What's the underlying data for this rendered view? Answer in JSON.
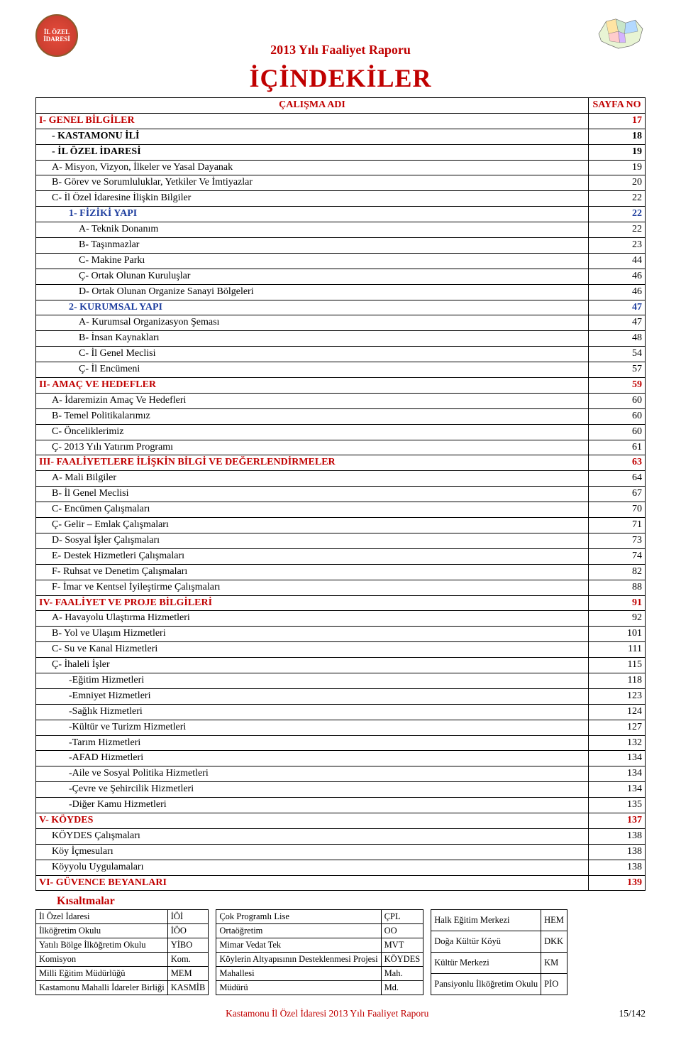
{
  "header": {
    "report_title": "2013 Yılı Faaliyet Raporu",
    "big_title": "İÇİNDEKİLER",
    "logo_left_text": "İL ÖZEL İDARESİ"
  },
  "toc_header": {
    "label_col": "ÇALIŞMA ADI",
    "page_col": "SAYFA NO"
  },
  "toc": [
    {
      "label": "I- GENEL BİLGİLER",
      "page": "17",
      "cls": "head1",
      "indent": 0
    },
    {
      "label": "- KASTAMONU İLİ",
      "page": "18",
      "cls": "head2",
      "indent": 1
    },
    {
      "label": "- İL ÖZEL İDARESİ",
      "page": "19",
      "cls": "head2",
      "indent": 1
    },
    {
      "label": "A- Misyon, Vizyon, İlkeler ve Yasal Dayanak",
      "page": "19",
      "cls": "",
      "indent": 1
    },
    {
      "label": "B- Görev ve Sorumluluklar, Yetkiler Ve İmtiyazlar",
      "page": "20",
      "cls": "",
      "indent": 1
    },
    {
      "label": "C- İl Özel İdaresine İlişkin Bilgiler",
      "page": "22",
      "cls": "",
      "indent": 1
    },
    {
      "label": "1- FİZİKİ YAPI",
      "page": "22",
      "cls": "blue",
      "indent": 2
    },
    {
      "label": "A- Teknik Donanım",
      "page": "22",
      "cls": "",
      "indent": 3
    },
    {
      "label": "B- Taşınmazlar",
      "page": "23",
      "cls": "",
      "indent": 3
    },
    {
      "label": "C- Makine Parkı",
      "page": "44",
      "cls": "",
      "indent": 3
    },
    {
      "label": "Ç- Ortak Olunan Kuruluşlar",
      "page": "46",
      "cls": "",
      "indent": 3
    },
    {
      "label": "D- Ortak Olunan Organize Sanayi Bölgeleri",
      "page": "46",
      "cls": "",
      "indent": 3
    },
    {
      "label": "2- KURUMSAL YAPI",
      "page": "47",
      "cls": "blue",
      "indent": 2
    },
    {
      "label": "A- Kurumsal Organizasyon Şeması",
      "page": "47",
      "cls": "",
      "indent": 3
    },
    {
      "label": "B- İnsan Kaynakları",
      "page": "48",
      "cls": "",
      "indent": 3
    },
    {
      "label": "C- İl Genel Meclisi",
      "page": "54",
      "cls": "",
      "indent": 3
    },
    {
      "label": "Ç- İl Encümeni",
      "page": "57",
      "cls": "",
      "indent": 3
    },
    {
      "label": "II- AMAÇ VE HEDEFLER",
      "page": "59",
      "cls": "head1",
      "indent": 0
    },
    {
      "label": "A- İdaremizin Amaç Ve Hedefleri",
      "page": "60",
      "cls": "",
      "indent": 1
    },
    {
      "label": "B- Temel Politikalarımız",
      "page": "60",
      "cls": "",
      "indent": 1
    },
    {
      "label": "C- Önceliklerimiz",
      "page": "60",
      "cls": "",
      "indent": 1
    },
    {
      "label": "Ç- 2013 Yılı Yatırım Programı",
      "page": "61",
      "cls": "",
      "indent": 1
    },
    {
      "label": "III- FAALİYETLERE İLİŞKİN BİLGİ VE DEĞERLENDİRMELER",
      "page": "63",
      "cls": "head1",
      "indent": 0
    },
    {
      "label": "A- Mali Bilgiler",
      "page": "64",
      "cls": "",
      "indent": 1
    },
    {
      "label": "B- İl Genel Meclisi",
      "page": "67",
      "cls": "",
      "indent": 1
    },
    {
      "label": "C- Encümen Çalışmaları",
      "page": "70",
      "cls": "",
      "indent": 1
    },
    {
      "label": "Ç- Gelir – Emlak Çalışmaları",
      "page": "71",
      "cls": "",
      "indent": 1
    },
    {
      "label": "D- Sosyal İşler Çalışmaları",
      "page": "73",
      "cls": "",
      "indent": 1
    },
    {
      "label": "E- Destek Hizmetleri Çalışmaları",
      "page": "74",
      "cls": "",
      "indent": 1
    },
    {
      "label": "F- Ruhsat ve Denetim Çalışmaları",
      "page": "82",
      "cls": "",
      "indent": 1
    },
    {
      "label": "F- İmar ve Kentsel İyileştirme Çalışmaları",
      "page": "88",
      "cls": "",
      "indent": 1
    },
    {
      "label": "IV- FAALİYET VE PROJE BİLGİLERİ",
      "page": "91",
      "cls": "head1",
      "indent": 0
    },
    {
      "label": "A- Havayolu Ulaştırma Hizmetleri",
      "page": "92",
      "cls": "",
      "indent": 1
    },
    {
      "label": "B- Yol ve Ulaşım Hizmetleri",
      "page": "101",
      "cls": "",
      "indent": 1
    },
    {
      "label": "C- Su ve Kanal Hizmetleri",
      "page": "111",
      "cls": "",
      "indent": 1
    },
    {
      "label": "Ç- İhaleli İşler",
      "page": "115",
      "cls": "",
      "indent": 1
    },
    {
      "label": "-Eğitim Hizmetleri",
      "page": "118",
      "cls": "",
      "indent": 2
    },
    {
      "label": "-Emniyet Hizmetleri",
      "page": "123",
      "cls": "",
      "indent": 2
    },
    {
      "label": "-Sağlık Hizmetleri",
      "page": "124",
      "cls": "",
      "indent": 2
    },
    {
      "label": "-Kültür ve Turizm Hizmetleri",
      "page": "127",
      "cls": "",
      "indent": 2
    },
    {
      "label": "-Tarım Hizmetleri",
      "page": "132",
      "cls": "",
      "indent": 2
    },
    {
      "label": "-AFAD Hizmetleri",
      "page": "134",
      "cls": "",
      "indent": 2
    },
    {
      "label": "-Aile ve Sosyal Politika Hizmetleri",
      "page": "134",
      "cls": "",
      "indent": 2
    },
    {
      "label": "-Çevre ve Şehircilik Hizmetleri",
      "page": "134",
      "cls": "",
      "indent": 2
    },
    {
      "label": "-Diğer Kamu Hizmetleri",
      "page": "135",
      "cls": "",
      "indent": 2
    },
    {
      "label": "V- KÖYDES",
      "page": "137",
      "cls": "head1",
      "indent": 0
    },
    {
      "label": "KÖYDES Çalışmaları",
      "page": "138",
      "cls": "",
      "indent": 1
    },
    {
      "label": "Köy İçmesuları",
      "page": "138",
      "cls": "",
      "indent": 1
    },
    {
      "label": "Köyyolu Uygulamaları",
      "page": "138",
      "cls": "",
      "indent": 1
    },
    {
      "label": "VI- GÜVENCE BEYANLARI",
      "page": "139",
      "cls": "head1",
      "indent": 0
    }
  ],
  "kisaltmalar_title": "Kısaltmalar",
  "abbr1": [
    [
      "İl Özel İdaresi",
      "İÖİ"
    ],
    [
      "İlköğretim Okulu",
      "İÖO"
    ],
    [
      "Yatılı Bölge İlköğretim Okulu",
      "YİBO"
    ],
    [
      "Komisyon",
      "Kom."
    ],
    [
      "Milli Eğitim Müdürlüğü",
      "MEM"
    ],
    [
      "Kastamonu Mahalli İdareler Birliği",
      "KASMİB"
    ]
  ],
  "abbr2": [
    [
      "Çok Programlı Lise",
      "ÇPL"
    ],
    [
      "Ortaöğretim",
      "OO"
    ],
    [
      "Mimar Vedat Tek",
      "MVT"
    ],
    [
      "Köylerin Altyapısının Desteklenmesi Projesi",
      "KÖYDES"
    ],
    [
      "Mahallesi",
      "Mah."
    ],
    [
      "Müdürü",
      "Md."
    ]
  ],
  "abbr3": [
    [
      "Halk Eğitim Merkezi",
      "HEM"
    ],
    [
      "Doğa Kültür Köyü",
      "DKK"
    ],
    [
      "Kültür Merkezi",
      "KM"
    ],
    [
      "Pansiyonlu İlköğretim Okulu",
      "PİO"
    ]
  ],
  "footer": {
    "text": "Kastamonu İl Özel İdaresi 2013 Yılı Faaliyet Raporu",
    "pagenum": "15/142"
  },
  "colors": {
    "accent_red": "#c00000",
    "accent_blue": "#1f3f9f",
    "text": "#000000",
    "border": "#000000",
    "background": "#ffffff"
  }
}
